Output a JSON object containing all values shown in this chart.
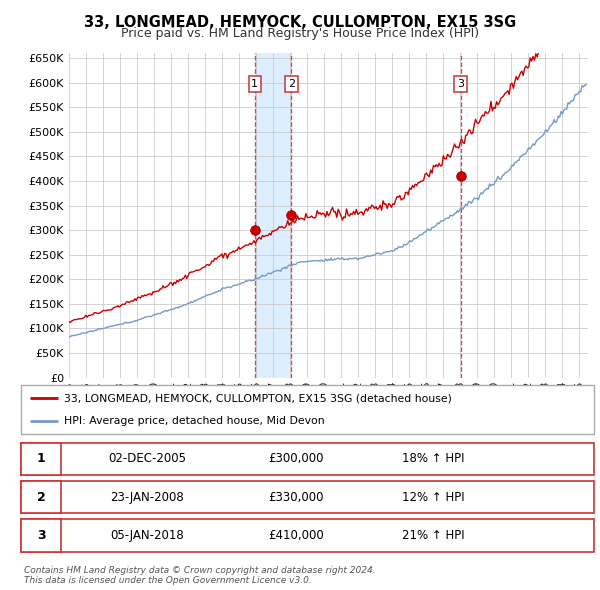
{
  "title": "33, LONGMEAD, HEMYOCK, CULLOMPTON, EX15 3SG",
  "subtitle": "Price paid vs. HM Land Registry's House Price Index (HPI)",
  "ylim": [
    0,
    660000
  ],
  "yticks": [
    0,
    50000,
    100000,
    150000,
    200000,
    250000,
    300000,
    350000,
    400000,
    450000,
    500000,
    550000,
    600000,
    650000
  ],
  "xlim_start": 1995.0,
  "xlim_end": 2025.5,
  "sale_dates_num": [
    2005.92,
    2008.07,
    2018.01
  ],
  "sale_prices": [
    300000,
    330000,
    410000
  ],
  "sale_labels": [
    "1",
    "2",
    "3"
  ],
  "legend_line1": "33, LONGMEAD, HEMYOCK, CULLOMPTON, EX15 3SG (detached house)",
  "legend_line2": "HPI: Average price, detached house, Mid Devon",
  "table_rows": [
    [
      "1",
      "02-DEC-2005",
      "£300,000",
      "18% ↑ HPI"
    ],
    [
      "2",
      "23-JAN-2008",
      "£330,000",
      "12% ↑ HPI"
    ],
    [
      "3",
      "05-JAN-2018",
      "£410,000",
      "21% ↑ HPI"
    ]
  ],
  "footer": "Contains HM Land Registry data © Crown copyright and database right 2024.\nThis data is licensed under the Open Government Licence v3.0.",
  "line_color_red": "#cc0000",
  "line_color_blue": "#7799cc",
  "shade_color": "#ddeeff",
  "vline_color": "#dd4444",
  "grid_color": "#cccccc"
}
